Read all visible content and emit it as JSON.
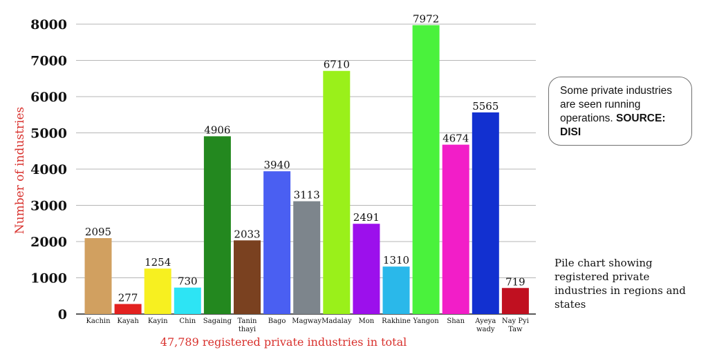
{
  "chart_data": {
    "type": "bar",
    "categories": [
      [
        "Kachin"
      ],
      [
        "Kayah"
      ],
      [
        "Kayin"
      ],
      [
        "Chin"
      ],
      [
        "Sagaing"
      ],
      [
        "Tanin",
        "thayi"
      ],
      [
        "Bago"
      ],
      [
        "Magway"
      ],
      [
        "Madalay"
      ],
      [
        "Mon"
      ],
      [
        "Rakhine"
      ],
      [
        "Yangon"
      ],
      [
        "Shan"
      ],
      [
        "Ayeya",
        "wady"
      ],
      [
        "Nay Pyi",
        "Taw"
      ]
    ],
    "values": [
      2095,
      277,
      1254,
      730,
      4906,
      2033,
      3940,
      3113,
      6710,
      2491,
      1310,
      7972,
      4674,
      5565,
      719
    ],
    "colors": [
      "#d1a060",
      "#e3211f",
      "#f7f020",
      "#2de4f4",
      "#23881f",
      "#7a4120",
      "#4a5ff2",
      "#7d858c",
      "#9af01a",
      "#9c10ec",
      "#2ab8ea",
      "#4af23c",
      "#f21ec8",
      "#1230d0",
      "#c01020"
    ],
    "ylabel": "Number of industries",
    "xlabel": "47,789 registered private industries in total",
    "ylim": [
      0,
      8000
    ],
    "yticks": [
      "0",
      "1000",
      "2000",
      "3000",
      "4000",
      "5000",
      "6000",
      "7000",
      "8000"
    ],
    "grid": true
  },
  "callout": {
    "text": "Some private industries are seen running operations.",
    "source": "SOURCE: DISI"
  },
  "caption": "Pile chart showing registered private industries in regions and states"
}
